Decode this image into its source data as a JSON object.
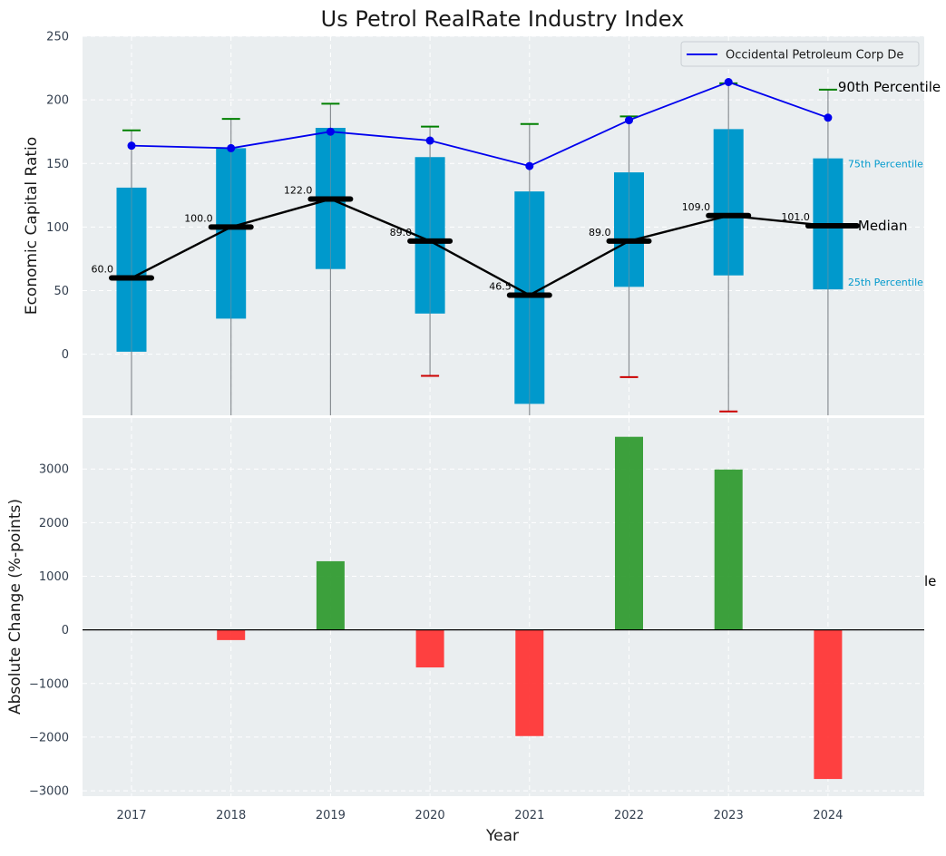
{
  "chart_data": [
    {
      "type": "box",
      "title": "Us Petrol RealRate Industry Index",
      "xlabel": "",
      "ylabel": "Economic Capital Ratio",
      "ylim": [
        -48,
        250
      ],
      "yticks": [
        0,
        50,
        100,
        150,
        200,
        250
      ],
      "categories": [
        "2017",
        "2018",
        "2019",
        "2020",
        "2021",
        "2022",
        "2023",
        "2024"
      ],
      "grid": true,
      "legend_position": "top-right",
      "boxes": {
        "q1": [
          2,
          28,
          67,
          32,
          -39,
          53,
          62,
          51
        ],
        "q3": [
          131,
          162,
          178,
          155,
          128,
          143,
          177,
          154
        ],
        "median": [
          60.0,
          100.0,
          122.0,
          89.0,
          46.5,
          89.0,
          109.0,
          101.0
        ],
        "p90": [
          176,
          185,
          197,
          179,
          181,
          187,
          213,
          208
        ],
        "p10": [
          null,
          null,
          null,
          -17,
          null,
          -18,
          -45,
          null
        ]
      },
      "median_labels": [
        "60.0",
        "100.0",
        "122.0",
        "89.0",
        "46.5",
        "89.0",
        "109.0",
        "101.0"
      ],
      "series": [
        {
          "name": "Occidental Petroleum Corp De",
          "color": "#0000ee",
          "values": [
            164,
            162,
            175,
            168,
            148,
            184,
            214,
            186
          ]
        }
      ],
      "annotations": {
        "p90": "90th Percentile",
        "p75": "75th Percentile",
        "median": "Median",
        "p25": "25th Percentile"
      }
    },
    {
      "type": "bar",
      "title": "",
      "xlabel": "Year",
      "ylabel": "Absolute Change (%-points)",
      "ylim": [
        -3100,
        3950
      ],
      "yticks": [
        -3000,
        -2000,
        -1000,
        0,
        1000,
        2000,
        3000
      ],
      "ytick_labels": [
        "−3000",
        "−2000",
        "−1000",
        "0",
        "1000",
        "2000",
        "3000"
      ],
      "categories": [
        "2017",
        "2018",
        "2019",
        "2020",
        "2021",
        "2022",
        "2023",
        "2024"
      ],
      "values": [
        null,
        -190,
        1280,
        -700,
        -1980,
        3600,
        2990,
        -2780
      ],
      "positive_color": "#2e9a2e",
      "negative_color": "#ff3333",
      "clipped_text": "le",
      "grid": true
    }
  ],
  "colors": {
    "plot_bg": "#eaeef0",
    "box_fill": "#0099cc",
    "whisker": "#8a8f94",
    "cap_high": "#008000",
    "cap_low": "#cc0000",
    "median_line": "#000000",
    "company_line": "#0000ee"
  }
}
